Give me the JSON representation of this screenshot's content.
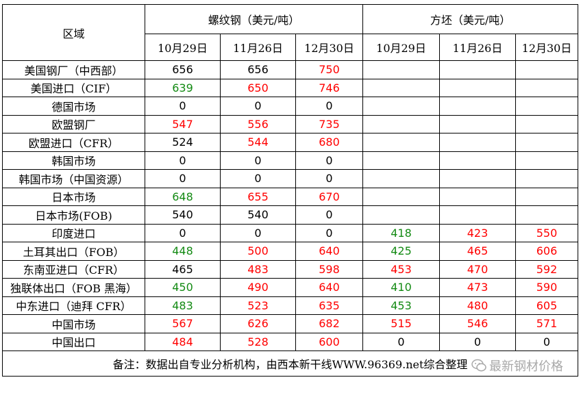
{
  "header": {
    "region": "区域",
    "rebar": "螺纹钢（美元/吨）",
    "billet": "方坯（美元/吨）",
    "dates": [
      "10月29日",
      "11月26日",
      "12月30日"
    ]
  },
  "colors": {
    "black": "#000000",
    "red": "#ff0000",
    "green": "#138a13"
  },
  "rows": [
    {
      "region": "美国钢厂（中西部）",
      "rebar": [
        {
          "v": "656",
          "c": "black"
        },
        {
          "v": "656",
          "c": "black"
        },
        {
          "v": "750",
          "c": "red"
        }
      ],
      "billet": [
        {
          "v": "",
          "c": "black"
        },
        {
          "v": "",
          "c": "black"
        },
        {
          "v": "",
          "c": "black"
        }
      ]
    },
    {
      "region": "美国进口（CIF）",
      "rebar": [
        {
          "v": "639",
          "c": "green"
        },
        {
          "v": "650",
          "c": "red"
        },
        {
          "v": "746",
          "c": "red"
        }
      ],
      "billet": [
        {
          "v": "",
          "c": "black"
        },
        {
          "v": "",
          "c": "black"
        },
        {
          "v": "",
          "c": "black"
        }
      ]
    },
    {
      "region": "德国市场",
      "rebar": [
        {
          "v": "0",
          "c": "black"
        },
        {
          "v": "0",
          "c": "black"
        },
        {
          "v": "0",
          "c": "black"
        }
      ],
      "billet": [
        {
          "v": "",
          "c": "black"
        },
        {
          "v": "",
          "c": "black"
        },
        {
          "v": "",
          "c": "black"
        }
      ]
    },
    {
      "region": "欧盟钢厂",
      "rebar": [
        {
          "v": "547",
          "c": "red"
        },
        {
          "v": "556",
          "c": "red"
        },
        {
          "v": "735",
          "c": "red"
        }
      ],
      "billet": [
        {
          "v": "",
          "c": "black"
        },
        {
          "v": "",
          "c": "black"
        },
        {
          "v": "",
          "c": "black"
        }
      ]
    },
    {
      "region": "欧盟进口（CFR）",
      "rebar": [
        {
          "v": "524",
          "c": "black"
        },
        {
          "v": "544",
          "c": "red"
        },
        {
          "v": "680",
          "c": "red"
        }
      ],
      "billet": [
        {
          "v": "",
          "c": "black"
        },
        {
          "v": "",
          "c": "black"
        },
        {
          "v": "",
          "c": "black"
        }
      ]
    },
    {
      "region": "韩国市场",
      "rebar": [
        {
          "v": "0",
          "c": "black"
        },
        {
          "v": "0",
          "c": "black"
        },
        {
          "v": "0",
          "c": "black"
        }
      ],
      "billet": [
        {
          "v": "",
          "c": "black"
        },
        {
          "v": "",
          "c": "black"
        },
        {
          "v": "",
          "c": "black"
        }
      ]
    },
    {
      "region": "韩国市场（中国资源）",
      "rebar": [
        {
          "v": "0",
          "c": "black"
        },
        {
          "v": "0",
          "c": "black"
        },
        {
          "v": "0",
          "c": "black"
        }
      ],
      "billet": [
        {
          "v": "",
          "c": "black"
        },
        {
          "v": "",
          "c": "black"
        },
        {
          "v": "",
          "c": "black"
        }
      ]
    },
    {
      "region": "日本市场",
      "rebar": [
        {
          "v": "648",
          "c": "green"
        },
        {
          "v": "655",
          "c": "red"
        },
        {
          "v": "670",
          "c": "red"
        }
      ],
      "billet": [
        {
          "v": "",
          "c": "black"
        },
        {
          "v": "",
          "c": "black"
        },
        {
          "v": "",
          "c": "black"
        }
      ]
    },
    {
      "region": "日本市场(FOB)",
      "rebar": [
        {
          "v": "540",
          "c": "black"
        },
        {
          "v": "540",
          "c": "black"
        },
        {
          "v": "0",
          "c": "black"
        }
      ],
      "billet": [
        {
          "v": "",
          "c": "black"
        },
        {
          "v": "",
          "c": "black"
        },
        {
          "v": "",
          "c": "black"
        }
      ]
    },
    {
      "region": "印度进口",
      "rebar": [
        {
          "v": "0",
          "c": "black"
        },
        {
          "v": "0",
          "c": "black"
        },
        {
          "v": "0",
          "c": "black"
        }
      ],
      "billet": [
        {
          "v": "418",
          "c": "green"
        },
        {
          "v": "423",
          "c": "red"
        },
        {
          "v": "550",
          "c": "red"
        }
      ]
    },
    {
      "region": "土耳其出口（FOB）",
      "rebar": [
        {
          "v": "448",
          "c": "green"
        },
        {
          "v": "500",
          "c": "red"
        },
        {
          "v": "640",
          "c": "red"
        }
      ],
      "billet": [
        {
          "v": "425",
          "c": "green"
        },
        {
          "v": "465",
          "c": "red"
        },
        {
          "v": "606",
          "c": "red"
        }
      ]
    },
    {
      "region": "东南亚进口（CFR）",
      "rebar": [
        {
          "v": "465",
          "c": "black"
        },
        {
          "v": "483",
          "c": "red"
        },
        {
          "v": "598",
          "c": "red"
        }
      ],
      "billet": [
        {
          "v": "453",
          "c": "red"
        },
        {
          "v": "470",
          "c": "red"
        },
        {
          "v": "592",
          "c": "red"
        }
      ]
    },
    {
      "region": "独联体出口（FOB 黑海）",
      "rebar": [
        {
          "v": "450",
          "c": "green"
        },
        {
          "v": "490",
          "c": "red"
        },
        {
          "v": "640",
          "c": "red"
        }
      ],
      "billet": [
        {
          "v": "410",
          "c": "green"
        },
        {
          "v": "473",
          "c": "red"
        },
        {
          "v": "590",
          "c": "red"
        }
      ]
    },
    {
      "region": "中东进口（迪拜 CFR）",
      "rebar": [
        {
          "v": "483",
          "c": "green"
        },
        {
          "v": "523",
          "c": "red"
        },
        {
          "v": "635",
          "c": "red"
        }
      ],
      "billet": [
        {
          "v": "453",
          "c": "green"
        },
        {
          "v": "480",
          "c": "red"
        },
        {
          "v": "605",
          "c": "red"
        }
      ]
    },
    {
      "region": "中国市场",
      "rebar": [
        {
          "v": "567",
          "c": "red"
        },
        {
          "v": "626",
          "c": "red"
        },
        {
          "v": "682",
          "c": "red"
        }
      ],
      "billet": [
        {
          "v": "515",
          "c": "red"
        },
        {
          "v": "546",
          "c": "red"
        },
        {
          "v": "571",
          "c": "red"
        }
      ]
    },
    {
      "region": "中国出口",
      "rebar": [
        {
          "v": "484",
          "c": "red"
        },
        {
          "v": "528",
          "c": "red"
        },
        {
          "v": "600",
          "c": "red"
        }
      ],
      "billet": [
        {
          "v": "0",
          "c": "black"
        },
        {
          "v": "0",
          "c": "black"
        },
        {
          "v": "0",
          "c": "black"
        }
      ]
    }
  ],
  "note": "备注：数据出自专业分析机构，由西本新干线WWW.96369.net综合整理",
  "watermark": "最新钢材价格"
}
